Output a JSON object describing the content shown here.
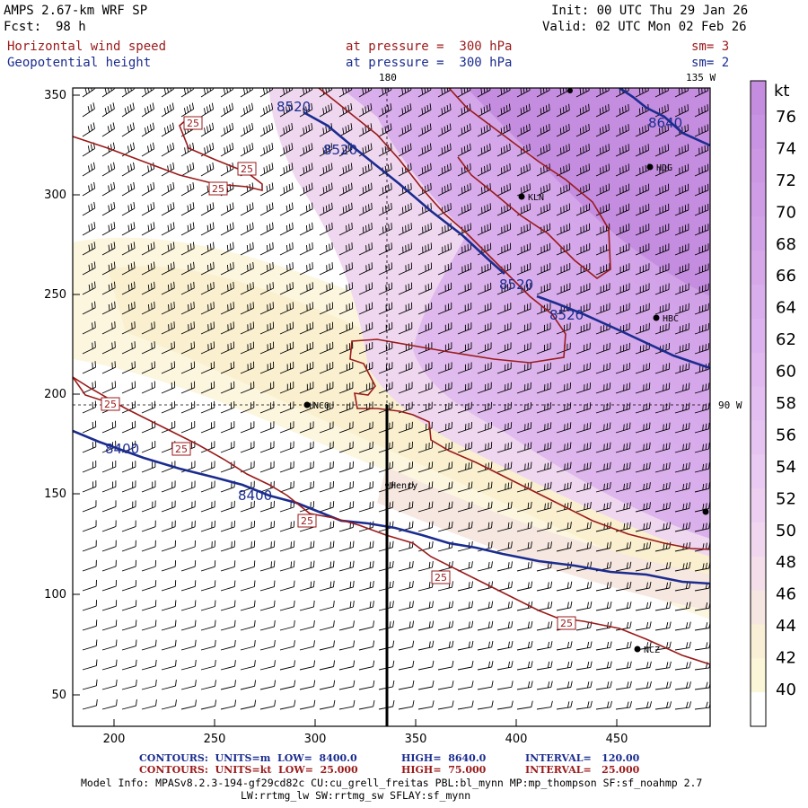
{
  "header": {
    "model": "AMPS 2.67-km WRF SP",
    "fcst_label": "Fcst:",
    "fcst_value": "98 h",
    "init": "Init: 00 UTC Thu 29 Jan 26",
    "valid": "Valid: 02 UTC Mon 02 Feb 26",
    "field1": "Horizontal wind speed",
    "field2": "Geopotential height",
    "level1": "at pressure =  300 hPa",
    "level2": "at pressure =  300 hPa",
    "sm1": "sm= 3",
    "sm2": "sm= 2"
  },
  "map": {
    "top_labels": [
      "180",
      "135 W"
    ],
    "right_label": "90 W",
    "stations": [
      "NCO",
      "KLN",
      "HDG",
      "HBC",
      "NCZ",
      "Henry"
    ],
    "height_contour_labels": [
      "8520",
      "8520",
      "8520",
      "8520",
      "8640",
      "8400",
      "8400"
    ],
    "speed_contour_labels": [
      "25",
      "25",
      "25",
      "25",
      "25",
      "25",
      "25",
      "25"
    ]
  },
  "chart_data": {
    "type": "heatmap",
    "title": "Horizontal wind speed and Geopotential height at 300 hPa",
    "x_ticks": [
      "200",
      "250",
      "300",
      "350",
      "400",
      "450"
    ],
    "y_ticks": [
      "50",
      "100",
      "150",
      "200",
      "250",
      "300",
      "350"
    ],
    "xlim": [
      175,
      494
    ],
    "ylim": [
      33,
      356
    ],
    "colorbar_unit": "kt",
    "colorbar_levels": [
      "76",
      "74",
      "72",
      "70",
      "68",
      "66",
      "64",
      "62",
      "60",
      "58",
      "56",
      "54",
      "52",
      "50",
      "48",
      "46",
      "44",
      "42",
      "40"
    ],
    "colorbar_colors": [
      "#c58de0",
      "#c893e2",
      "#cc98e4",
      "#cf9de6",
      "#d2a2e8",
      "#d6a8ea",
      "#d9aeec",
      "#dcb3ee",
      "#e0b9f0",
      "#e3bef1",
      "#e6c4f2",
      "#e9caf2",
      "#edd0f1",
      "#f0d7ef",
      "#f3deea",
      "#f6e6e2",
      "#f9efd6",
      "#fcf6d8",
      "#ffffff"
    ]
  },
  "footer": {
    "blue_label": "CONTOURS:  UNITS=m  LOW=  8400.0",
    "blue_high": "HIGH=  8640.0",
    "blue_interval": "INTERVAL=   120.00",
    "red_label": "CONTOURS:  UNITS=kt  LOW=  25.000",
    "red_high": "HIGH=  75.000",
    "red_interval": "INTERVAL=   25.000",
    "model_info": "Model Info: MPASv8.2.3-194-gf29cd82c CU:cu_grell_freitas PBL:bl_mynn MP:mp_thompson SF:sf_noahmp 2.7",
    "model_info2": "LW:rrtmg_lw SW:rrtmg_sw SFLAY:sf_mynn"
  },
  "colors": {
    "height_contour": "#1b2c8f",
    "speed_contour": "#9a1a1a",
    "text": "#000000"
  }
}
